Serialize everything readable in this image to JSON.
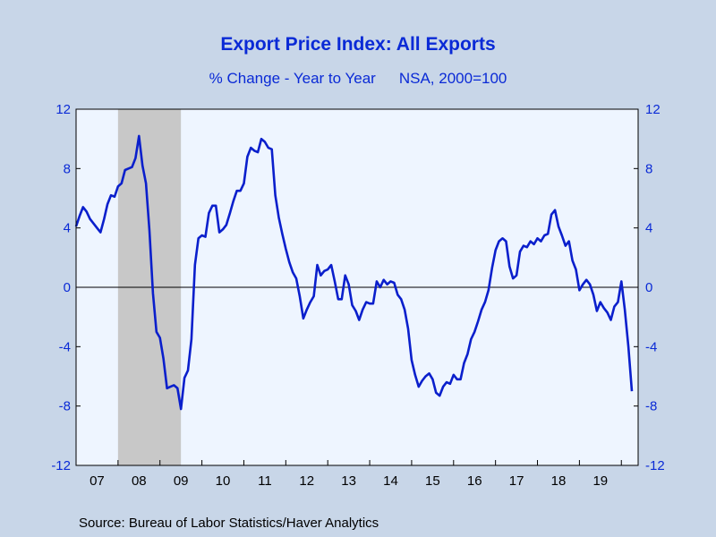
{
  "chart_data": {
    "type": "line",
    "title": "Export Price Index: All Exports",
    "subtitle": "% Change - Year to Year",
    "subtitle_note": "NSA, 2000=100",
    "source": "Source:  Bureau of Labor Statistics/Haver Analytics",
    "ylim": [
      -12,
      12
    ],
    "yticks": [
      -12,
      -8,
      -4,
      0,
      4,
      8,
      12
    ],
    "x_start": 2007.0,
    "x_end": 2020.0,
    "year_labels": [
      "07",
      "08",
      "09",
      "10",
      "11",
      "12",
      "13",
      "14",
      "15",
      "16",
      "17",
      "18",
      "19"
    ],
    "recession": [
      2008.0,
      2009.5
    ],
    "line_color": "#0a1fcc",
    "series": [
      {
        "name": "",
        "x": [
          2007.0,
          2007.083,
          2007.167,
          2007.25,
          2007.333,
          2007.417,
          2007.5,
          2007.583,
          2007.667,
          2007.75,
          2007.833,
          2007.917,
          2008.0,
          2008.083,
          2008.167,
          2008.25,
          2008.333,
          2008.417,
          2008.5,
          2008.583,
          2008.667,
          2008.75,
          2008.833,
          2008.917,
          2009.0,
          2009.083,
          2009.167,
          2009.25,
          2009.333,
          2009.417,
          2009.5,
          2009.583,
          2009.667,
          2009.75,
          2009.833,
          2009.917,
          2010.0,
          2010.083,
          2010.167,
          2010.25,
          2010.333,
          2010.417,
          2010.5,
          2010.583,
          2010.667,
          2010.75,
          2010.833,
          2010.917,
          2011.0,
          2011.083,
          2011.167,
          2011.25,
          2011.333,
          2011.417,
          2011.5,
          2011.583,
          2011.667,
          2011.75,
          2011.833,
          2011.917,
          2012.0,
          2012.083,
          2012.167,
          2012.25,
          2012.333,
          2012.417,
          2012.5,
          2012.583,
          2012.667,
          2012.75,
          2012.833,
          2012.917,
          2013.0,
          2013.083,
          2013.167,
          2013.25,
          2013.333,
          2013.417,
          2013.5,
          2013.583,
          2013.667,
          2013.75,
          2013.833,
          2013.917,
          2014.0,
          2014.083,
          2014.167,
          2014.25,
          2014.333,
          2014.417,
          2014.5,
          2014.583,
          2014.667,
          2014.75,
          2014.833,
          2014.917,
          2015.0,
          2015.083,
          2015.167,
          2015.25,
          2015.333,
          2015.417,
          2015.5,
          2015.583,
          2015.667,
          2015.75,
          2015.833,
          2015.917,
          2016.0,
          2016.083,
          2016.167,
          2016.25,
          2016.333,
          2016.417,
          2016.5,
          2016.583,
          2016.667,
          2016.75,
          2016.833,
          2016.917,
          2017.0,
          2017.083,
          2017.167,
          2017.25,
          2017.333,
          2017.417,
          2017.5,
          2017.583,
          2017.667,
          2017.75,
          2017.833,
          2017.917,
          2018.0,
          2018.083,
          2018.167,
          2018.25,
          2018.333,
          2018.417,
          2018.5,
          2018.583,
          2018.667,
          2018.75,
          2018.833,
          2018.917,
          2019.0,
          2019.083,
          2019.167,
          2019.25,
          2019.333,
          2019.417,
          2019.5,
          2019.583,
          2019.667,
          2019.75,
          2019.833,
          2019.917,
          2020.0,
          2020.083,
          2020.167,
          2020.25
        ],
        "values": [
          4.1,
          4.8,
          5.4,
          5.1,
          4.6,
          4.3,
          4.0,
          3.7,
          4.6,
          5.6,
          6.2,
          6.1,
          6.8,
          7.0,
          7.9,
          8.0,
          8.1,
          8.7,
          10.2,
          8.2,
          7.0,
          3.8,
          -0.4,
          -3.0,
          -3.4,
          -4.8,
          -6.8,
          -6.7,
          -6.6,
          -6.8,
          -8.2,
          -6.1,
          -5.6,
          -3.5,
          1.5,
          3.3,
          3.5,
          3.4,
          5.0,
          5.5,
          5.5,
          3.7,
          3.9,
          4.2,
          5.0,
          5.8,
          6.5,
          6.5,
          7.0,
          8.8,
          9.4,
          9.2,
          9.1,
          10.0,
          9.8,
          9.4,
          9.3,
          6.2,
          4.7,
          3.6,
          2.6,
          1.7,
          1.0,
          0.6,
          -0.6,
          -2.1,
          -1.5,
          -1.0,
          -0.6,
          1.5,
          0.8,
          1.1,
          1.2,
          1.5,
          0.4,
          -0.8,
          -0.8,
          0.8,
          0.2,
          -1.2,
          -1.6,
          -2.2,
          -1.5,
          -1.0,
          -1.1,
          -1.1,
          0.4,
          0.0,
          0.5,
          0.2,
          0.4,
          0.3,
          -0.5,
          -0.8,
          -1.5,
          -2.8,
          -4.9,
          -5.9,
          -6.7,
          -6.3,
          -6.0,
          -5.8,
          -6.2,
          -7.1,
          -7.3,
          -6.7,
          -6.4,
          -6.5,
          -5.9,
          -6.2,
          -6.2,
          -5.1,
          -4.5,
          -3.5,
          -3.0,
          -2.3,
          -1.5,
          -1.0,
          -0.2,
          1.3,
          2.5,
          3.1,
          3.3,
          3.1,
          1.4,
          0.6,
          0.8,
          2.4,
          2.8,
          2.7,
          3.1,
          2.9,
          3.3,
          3.1,
          3.5,
          3.6,
          4.9,
          5.2,
          4.1,
          3.5,
          2.8,
          3.1,
          1.8,
          1.2,
          -0.2,
          0.2,
          0.5,
          0.2,
          -0.5,
          -1.6,
          -1.0,
          -1.4,
          -1.7,
          -2.2,
          -1.3,
          -1.0,
          0.4,
          -1.5,
          -4.0,
          -7.0
        ]
      }
    ]
  }
}
